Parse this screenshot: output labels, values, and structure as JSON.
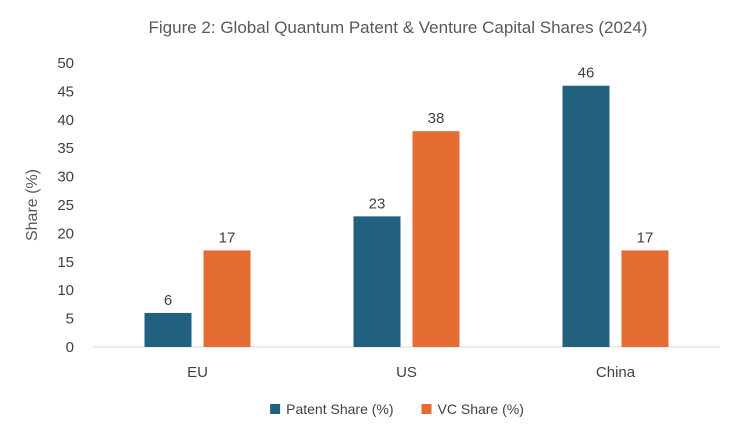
{
  "chart_data": {
    "type": "bar",
    "title": "Figure 2: Global Quantum Patent & Venture Capital Shares (2024)",
    "xlabel": "",
    "ylabel": "Share (%)",
    "categories": [
      "EU",
      "US",
      "China"
    ],
    "series": [
      {
        "name": "Patent Share (%)",
        "values": [
          6,
          23,
          46
        ],
        "color": "#22607F"
      },
      {
        "name": "VC Share (%)",
        "values": [
          17,
          38,
          17
        ],
        "color": "#E46C33"
      }
    ],
    "ylim": [
      0,
      50
    ],
    "yticks": [
      0,
      5,
      10,
      15,
      20,
      25,
      30,
      35,
      40,
      45,
      50
    ],
    "grid": false,
    "legend_position": "bottom",
    "data_labels": true
  }
}
